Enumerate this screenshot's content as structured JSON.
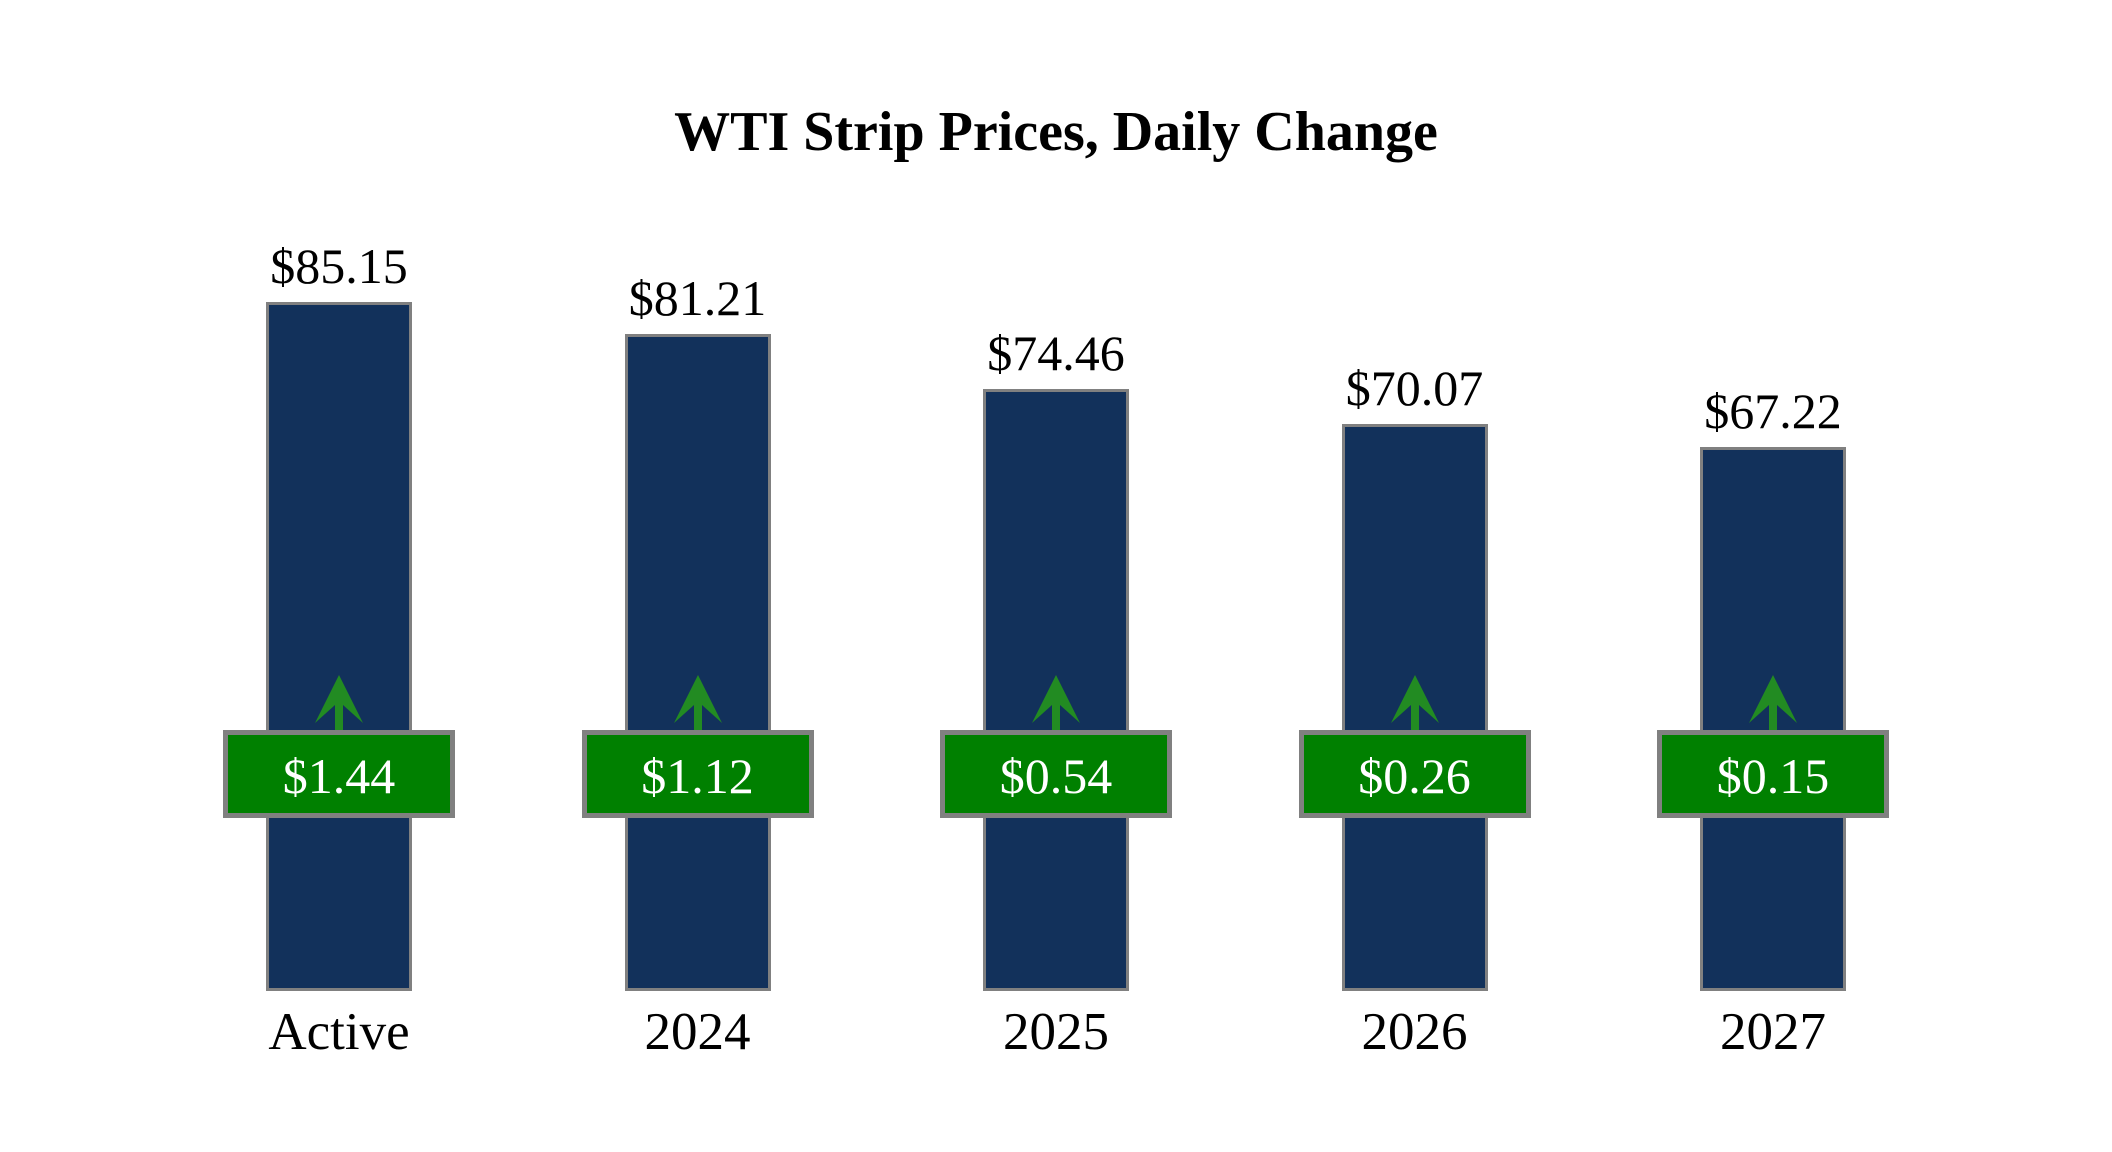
{
  "title": "WTI Strip Prices, Daily Change",
  "chart_data": {
    "type": "bar",
    "title": "WTI Strip Prices, Daily Change",
    "categories": [
      "Active",
      "2024",
      "2025",
      "2026",
      "2027"
    ],
    "series": [
      {
        "name": "WTI strip price (US$ per barrel)",
        "values": [
          85.15,
          81.21,
          74.46,
          70.07,
          67.22
        ]
      },
      {
        "name": "Daily change (US$ per barrel)",
        "values": [
          1.44,
          1.12,
          0.54,
          0.26,
          0.15
        ]
      }
    ],
    "price_labels": [
      "$85.15",
      "$81.21",
      "$74.46",
      "$70.07",
      "$67.22"
    ],
    "change_labels": [
      "$1.44",
      "$1.12",
      "$0.54",
      "$0.26",
      "$0.15"
    ],
    "change_direction": "up",
    "arrow_icon": "up-arrow",
    "ylim": [
      0,
      95
    ],
    "grid": false,
    "axes_visible": false,
    "legend": "none",
    "colors": {
      "bar_fill": "#12315B",
      "bar_border": "#808080",
      "badge_fill": "#008000",
      "badge_border": "#808080",
      "arrow_green": "#228B22",
      "value_text": "#000000",
      "badge_text": "#FFFFFF",
      "background": "#FFFFFF"
    }
  }
}
